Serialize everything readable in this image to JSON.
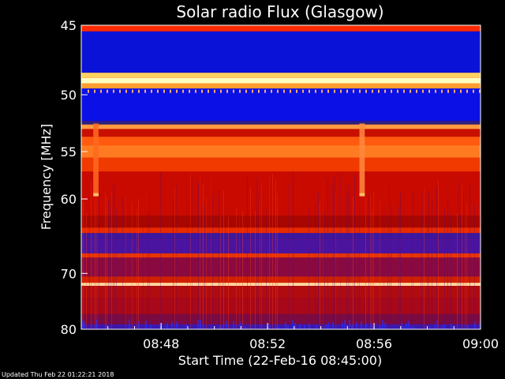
{
  "chart_data": {
    "type": "heatmap",
    "title": "Solar radio Flux (Glasgow)",
    "xlabel": "Start Time (22-Feb-16 08:45:00)",
    "ylabel": "Frequency [MHz]",
    "x_ticks": [
      "08:48",
      "08:52",
      "08:56",
      "09:00"
    ],
    "x_tick_minutes": [
      3,
      7,
      11,
      15
    ],
    "x_range_minutes": [
      0,
      15
    ],
    "y_ticks": [
      45,
      50,
      55,
      60,
      70,
      80
    ],
    "ylim": [
      45,
      80
    ],
    "y_scale": "reciprocal",
    "bands_mhz": [
      {
        "f0": 45.0,
        "f1": 45.4,
        "color": "#ff2a00"
      },
      {
        "f0": 45.4,
        "f1": 48.3,
        "color": "#0a12d8"
      },
      {
        "f0": 48.3,
        "f1": 48.7,
        "color": "#ffd060"
      },
      {
        "f0": 48.7,
        "f1": 49.1,
        "color": "#ffffc0"
      },
      {
        "f0": 49.1,
        "f1": 49.5,
        "color": "#ff9c30"
      },
      {
        "f0": 49.5,
        "f1": 52.2,
        "color": "#0a10e6"
      },
      {
        "f0": 52.2,
        "f1": 52.5,
        "color": "#2a2080"
      },
      {
        "f0": 52.5,
        "f1": 52.9,
        "color": "#ff9a40"
      },
      {
        "f0": 52.9,
        "f1": 53.6,
        "color": "#c81000"
      },
      {
        "f0": 53.6,
        "f1": 54.4,
        "color": "#ff5a10"
      },
      {
        "f0": 54.4,
        "f1": 55.6,
        "color": "#ff7a20"
      },
      {
        "f0": 55.6,
        "f1": 57.0,
        "color": "#f03a00"
      },
      {
        "f0": 57.0,
        "f1": 62.0,
        "color": "#c80a00"
      },
      {
        "f0": 62.0,
        "f1": 63.5,
        "color": "#a80600"
      },
      {
        "f0": 63.5,
        "f1": 64.2,
        "color": "#e82a00"
      },
      {
        "f0": 64.2,
        "f1": 65.0,
        "color": "#3a18a0"
      },
      {
        "f0": 65.0,
        "f1": 67.0,
        "color": "#4a14a0"
      },
      {
        "f0": 67.0,
        "f1": 67.6,
        "color": "#e83400"
      },
      {
        "f0": 67.6,
        "f1": 70.5,
        "color": "#8a0a40"
      },
      {
        "f0": 70.5,
        "f1": 71.5,
        "color": "#d02000"
      },
      {
        "f0": 71.5,
        "f1": 72.0,
        "color": "#ffd8a0"
      },
      {
        "f0": 72.0,
        "f1": 74.0,
        "color": "#b00c10"
      },
      {
        "f0": 74.0,
        "f1": 77.0,
        "color": "#a80818"
      },
      {
        "f0": 77.0,
        "f1": 79.0,
        "color": "#7a0a40"
      },
      {
        "f0": 79.0,
        "f1": 80.0,
        "color": "#3a18b0"
      }
    ],
    "bursts": [
      {
        "t0_min": 0.45,
        "t1_min": 0.65,
        "f0": 52.4,
        "f1": 59.6,
        "color": "#ff6a20"
      },
      {
        "t0_min": 10.45,
        "t1_min": 10.65,
        "f0": 52.4,
        "f1": 59.6,
        "color": "#ff8a40"
      }
    ],
    "colors": {
      "background": "#000000",
      "text": "#ffffff"
    }
  },
  "footer": {
    "updated": "Updated Thu Feb 22 01:22:21 2018"
  }
}
